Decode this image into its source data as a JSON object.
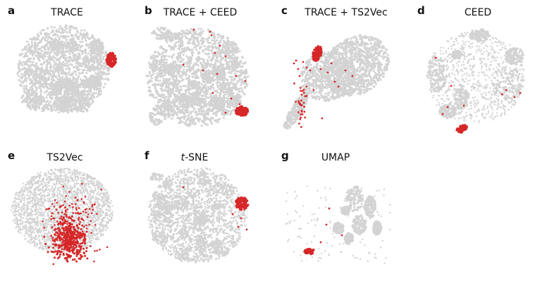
{
  "colors": {
    "background_points": "#d3d3d3",
    "highlight_points": "#d62728"
  },
  "chart_data": [
    {
      "type": "scatter",
      "letter": "a",
      "title": "TRACE",
      "highlight_summary": "dense cluster on right edge"
    },
    {
      "type": "scatter",
      "letter": "b",
      "title": "TRACE + CEED",
      "highlight_summary": "dense cluster lower-right plus sparse points"
    },
    {
      "type": "scatter",
      "letter": "c",
      "title": "TRACE + TS2Vec",
      "highlight_summary": "dense cluster upper-left plus sparse points"
    },
    {
      "type": "scatter",
      "letter": "d",
      "title": "CEED",
      "highlight_summary": "dense cluster at bottom plus sparse points"
    },
    {
      "type": "scatter",
      "letter": "e",
      "title": "TS2Vec",
      "highlight_summary": "large diffuse cluster lower-right"
    },
    {
      "type": "scatter",
      "letter": "f",
      "title_italic": "t",
      "title_rest": "-SNE",
      "highlight_summary": "cluster on upper-right edge"
    },
    {
      "type": "scatter",
      "letter": "g",
      "title": "UMAP",
      "highlight_summary": "small cluster lower-left"
    }
  ]
}
